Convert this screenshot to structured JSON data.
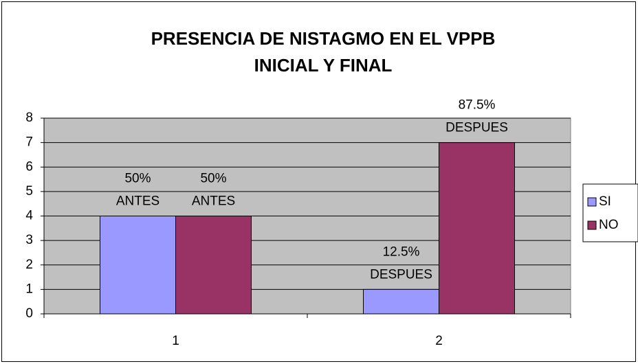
{
  "chart_data": {
    "type": "bar",
    "title": [
      "PRESENCIA DE NISTAGMO EN EL VPPB",
      "INICIAL Y FINAL"
    ],
    "categories": [
      "1",
      "2"
    ],
    "series": [
      {
        "name": "SI",
        "color": "#9999ff",
        "values": [
          4,
          1
        ],
        "labels": [
          [
            "50%",
            "ANTES"
          ],
          [
            "12.5%",
            "DESPUES"
          ]
        ]
      },
      {
        "name": "NO",
        "color": "#993366",
        "values": [
          4,
          7
        ],
        "labels": [
          [
            "50%",
            "ANTES"
          ],
          [
            "87.5%",
            "DESPUES"
          ]
        ]
      }
    ],
    "ylim": [
      0,
      8
    ],
    "yticks": [
      0,
      1,
      2,
      3,
      4,
      5,
      6,
      7,
      8
    ],
    "grid": true,
    "plot_background": "#c0c0c0",
    "legend": "right"
  }
}
